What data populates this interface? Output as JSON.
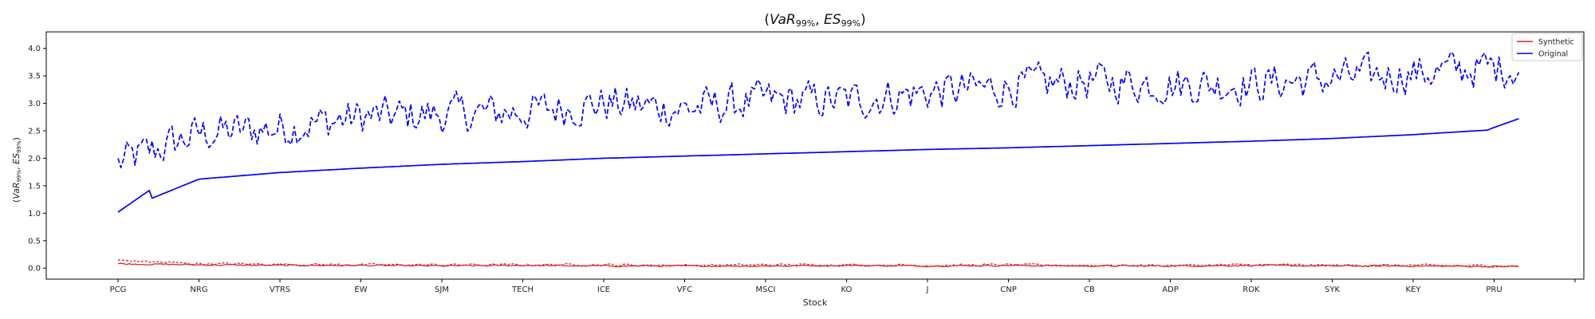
{
  "chart_data": {
    "type": "line",
    "title": "(VaR_99%, ES_99%)",
    "title_parts": {
      "var": "VaR",
      "es": "ES",
      "sub": "99%"
    },
    "xlabel": "Stock",
    "ylabel": "(VaR_99%, ES_99%)",
    "ylim": [
      -0.2,
      4.3
    ],
    "yticks": [
      0.0,
      0.5,
      1.0,
      1.5,
      2.0,
      2.5,
      3.0,
      3.5,
      4.0
    ],
    "ytick_labels": [
      "0.0",
      "0.5",
      "1.0",
      "1.5",
      "2.0",
      "2.5",
      "3.0",
      "3.5",
      "4.0"
    ],
    "categories": [
      "PCG",
      "NRG",
      "VTRS",
      "EW",
      "SJM",
      "TECH",
      "ICE",
      "VFC",
      "MSCI",
      "KO",
      "J",
      "CNP",
      "CB",
      "ADP",
      "ROK",
      "SYK",
      "KEY",
      "PRU"
    ],
    "grid": false,
    "legend_position": "top-right",
    "legend": [
      {
        "name": "Synthetic",
        "color": "#d62728"
      },
      {
        "name": "Original",
        "color": "#0000ff"
      }
    ],
    "series": [
      {
        "name": "Original VaR",
        "legend": "Original",
        "style": "solid",
        "color": "#0000ff",
        "x": [
          "PCG",
          "NRG",
          "VTRS",
          "EW",
          "SJM",
          "TECH",
          "ICE",
          "VFC",
          "MSCI",
          "KO",
          "J",
          "CNP",
          "CB",
          "ADP",
          "ROK",
          "SYK",
          "KEY",
          "PRU"
        ],
        "values": [
          1.02,
          1.62,
          1.74,
          1.82,
          1.89,
          1.94,
          2.0,
          2.04,
          2.08,
          2.12,
          2.16,
          2.19,
          2.23,
          2.27,
          2.31,
          2.36,
          2.43,
          2.52
        ]
      },
      {
        "name": "Original ES",
        "legend": "Original",
        "style": "dashed",
        "color": "#0000ff",
        "x": [
          "PCG",
          "NRG",
          "VTRS",
          "EW",
          "SJM",
          "TECH",
          "ICE",
          "VFC",
          "MSCI",
          "KO",
          "J",
          "CNP",
          "CB",
          "ADP",
          "ROK",
          "SYK",
          "KEY",
          "PRU"
        ],
        "values": [
          1.9,
          2.45,
          2.55,
          2.75,
          2.8,
          2.85,
          3.0,
          2.9,
          3.05,
          3.05,
          3.2,
          3.3,
          3.4,
          3.35,
          3.35,
          3.45,
          3.55,
          3.65
        ]
      },
      {
        "name": "Synthetic VaR",
        "legend": "Synthetic",
        "style": "solid",
        "color": "#d62728",
        "x": [
          "PCG",
          "NRG",
          "VTRS",
          "EW",
          "SJM",
          "TECH",
          "ICE",
          "VFC",
          "MSCI",
          "KO",
          "J",
          "CNP",
          "CB",
          "ADP",
          "ROK",
          "SYK",
          "KEY",
          "PRU"
        ],
        "values": [
          0.08,
          0.06,
          0.05,
          0.05,
          0.04,
          0.05,
          0.04,
          0.04,
          0.04,
          0.05,
          0.04,
          0.05,
          0.04,
          0.04,
          0.05,
          0.04,
          0.04,
          0.03
        ]
      },
      {
        "name": "Synthetic ES",
        "legend": "Synthetic",
        "style": "dashed",
        "color": "#d62728",
        "x": [
          "PCG",
          "NRG",
          "VTRS",
          "EW",
          "SJM",
          "TECH",
          "ICE",
          "VFC",
          "MSCI",
          "KO",
          "J",
          "CNP",
          "CB",
          "ADP",
          "ROK",
          "SYK",
          "KEY",
          "PRU"
        ],
        "values": [
          0.14,
          0.08,
          0.07,
          0.06,
          0.06,
          0.06,
          0.06,
          0.05,
          0.06,
          0.06,
          0.05,
          0.06,
          0.05,
          0.05,
          0.06,
          0.05,
          0.05,
          0.04
        ]
      }
    ]
  }
}
